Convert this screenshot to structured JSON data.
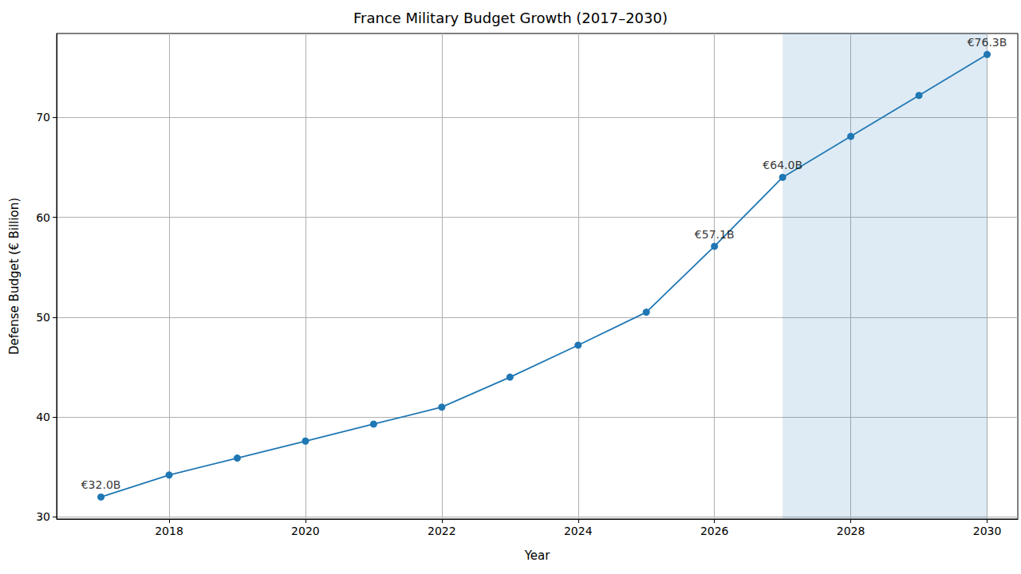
{
  "chart_data": {
    "type": "line",
    "title": "France Military Budget Growth (2017–2030)",
    "x_label": "Year",
    "y_label": "Defense Budget (€ Billion)",
    "x": [
      2017,
      2018,
      2019,
      2020,
      2021,
      2022,
      2023,
      2024,
      2025,
      2026,
      2027,
      2028,
      2029,
      2030
    ],
    "values": [
      32.0,
      34.2,
      35.9,
      37.6,
      39.3,
      41.0,
      44.0,
      47.2,
      50.5,
      57.1,
      64.0,
      68.1,
      72.2,
      76.3
    ],
    "color": "#1f77b4",
    "marker": "circle",
    "line_style": "solid",
    "xlim": [
      2016.35,
      2030.45
    ],
    "xticks": [
      2018,
      2020,
      2022,
      2024,
      2026,
      2028,
      2030
    ],
    "ylim": [
      29.8,
      78.4
    ],
    "yticks": [
      30,
      40,
      50,
      60,
      70
    ],
    "grid": true,
    "annotations": [
      {
        "x": 2017,
        "y": 32.0,
        "text": "€32.0B"
      },
      {
        "x": 2026,
        "y": 57.1,
        "text": "€57.1B"
      },
      {
        "x": 2027,
        "y": 64.0,
        "text": "€64.0B"
      },
      {
        "x": 2030,
        "y": 76.3,
        "text": "€76.3B"
      }
    ],
    "shaded_range": [
      2027,
      2030
    ]
  }
}
